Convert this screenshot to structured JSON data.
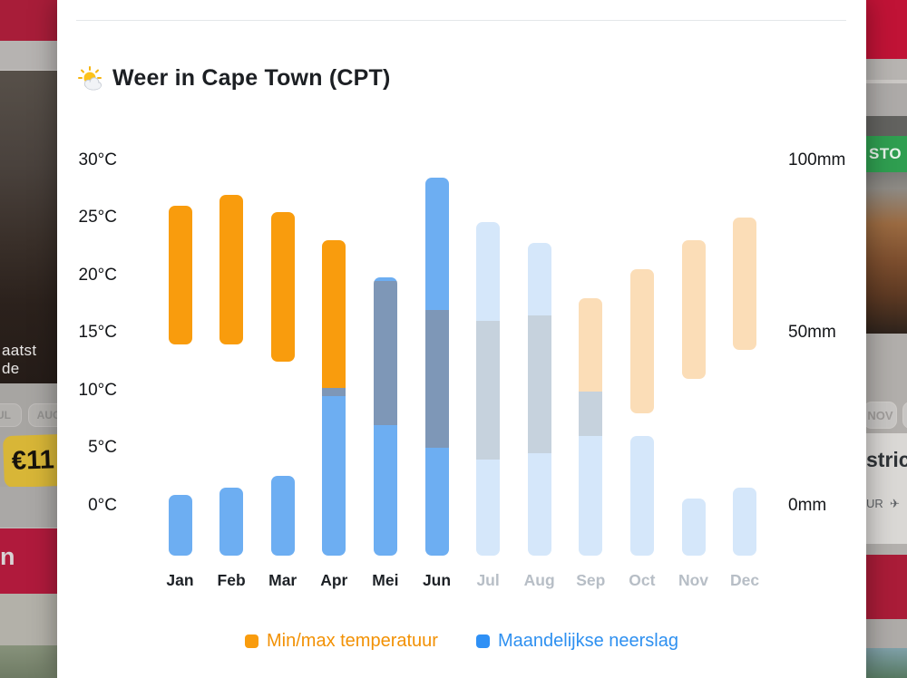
{
  "modal": {
    "title": "Weer in Cape Town (CPT)",
    "title_icon": "sun-behind-cloud"
  },
  "chart_data": {
    "type": "bar",
    "title": "Weer in Cape Town (CPT)",
    "categories": [
      "Jan",
      "Feb",
      "Mar",
      "Apr",
      "Mei",
      "Jun",
      "Jul",
      "Aug",
      "Sep",
      "Oct",
      "Nov",
      "Dec"
    ],
    "series": [
      {
        "name": "Min/max temperatuur",
        "type": "floating-range-bar",
        "unit": "°C",
        "min": [
          14,
          14,
          12.5,
          9.5,
          7,
          5,
          4,
          4.5,
          6,
          8,
          11,
          13.5
        ],
        "max": [
          26,
          27,
          25.5,
          23,
          19.5,
          17,
          16,
          16.5,
          18,
          20.5,
          23,
          25
        ]
      },
      {
        "name": "Maandelijkse neerslag",
        "type": "bar",
        "unit": "mm",
        "values": [
          3,
          5,
          8.5,
          34,
          66,
          95,
          82,
          76,
          33,
          20,
          2,
          5
        ]
      }
    ],
    "dimmed_months": [
      "Jul",
      "Aug",
      "Sep",
      "Oct",
      "Nov",
      "Dec"
    ],
    "left_axis": {
      "unit": "°C",
      "min": 0,
      "max": 30,
      "ticks": [
        {
          "label": "30°C",
          "value": 30
        },
        {
          "label": "25°C",
          "value": 25
        },
        {
          "label": "20°C",
          "value": 20
        },
        {
          "label": "15°C",
          "value": 15
        },
        {
          "label": "10°C",
          "value": 10
        },
        {
          "label": "5°C",
          "value": 5
        },
        {
          "label": "0°C",
          "value": 0
        }
      ]
    },
    "right_axis": {
      "unit": "mm",
      "min": 0,
      "max": 100,
      "ticks": [
        {
          "label": "100mm",
          "value": 100
        },
        {
          "label": "50mm",
          "value": 50
        },
        {
          "label": "0mm",
          "value": 0
        }
      ]
    },
    "legend": [
      {
        "label": "Min/max temperatuur",
        "swatch": "#f99c0d",
        "text_color": "#f29104"
      },
      {
        "label": "Maandelijkse neerslag",
        "swatch": "#2f90f5",
        "text_color": "#2e90f0"
      }
    ],
    "colors": {
      "temperature": "#f99c0d",
      "precipitation": "#6daef2",
      "overlap": "#7e97b7",
      "temperature_dimmed": "#fbddb7",
      "precipitation_dimmed": "#d5e7fa",
      "overlap_dimmed": "#c6d2dd"
    },
    "grid": "off",
    "legend_position": "bottom"
  },
  "background": {
    "left_rail": {
      "photo_caption": "aatst de",
      "pill_1": "UL",
      "pill_2": "AUG",
      "price_badge": "€11",
      "red_banner_letter": "n"
    },
    "right_rail": {
      "green_button": "STO",
      "pill_month": "NOV",
      "card_heading": "stric",
      "card_sub": "UR",
      "card_sub_icon": "airplane"
    }
  }
}
